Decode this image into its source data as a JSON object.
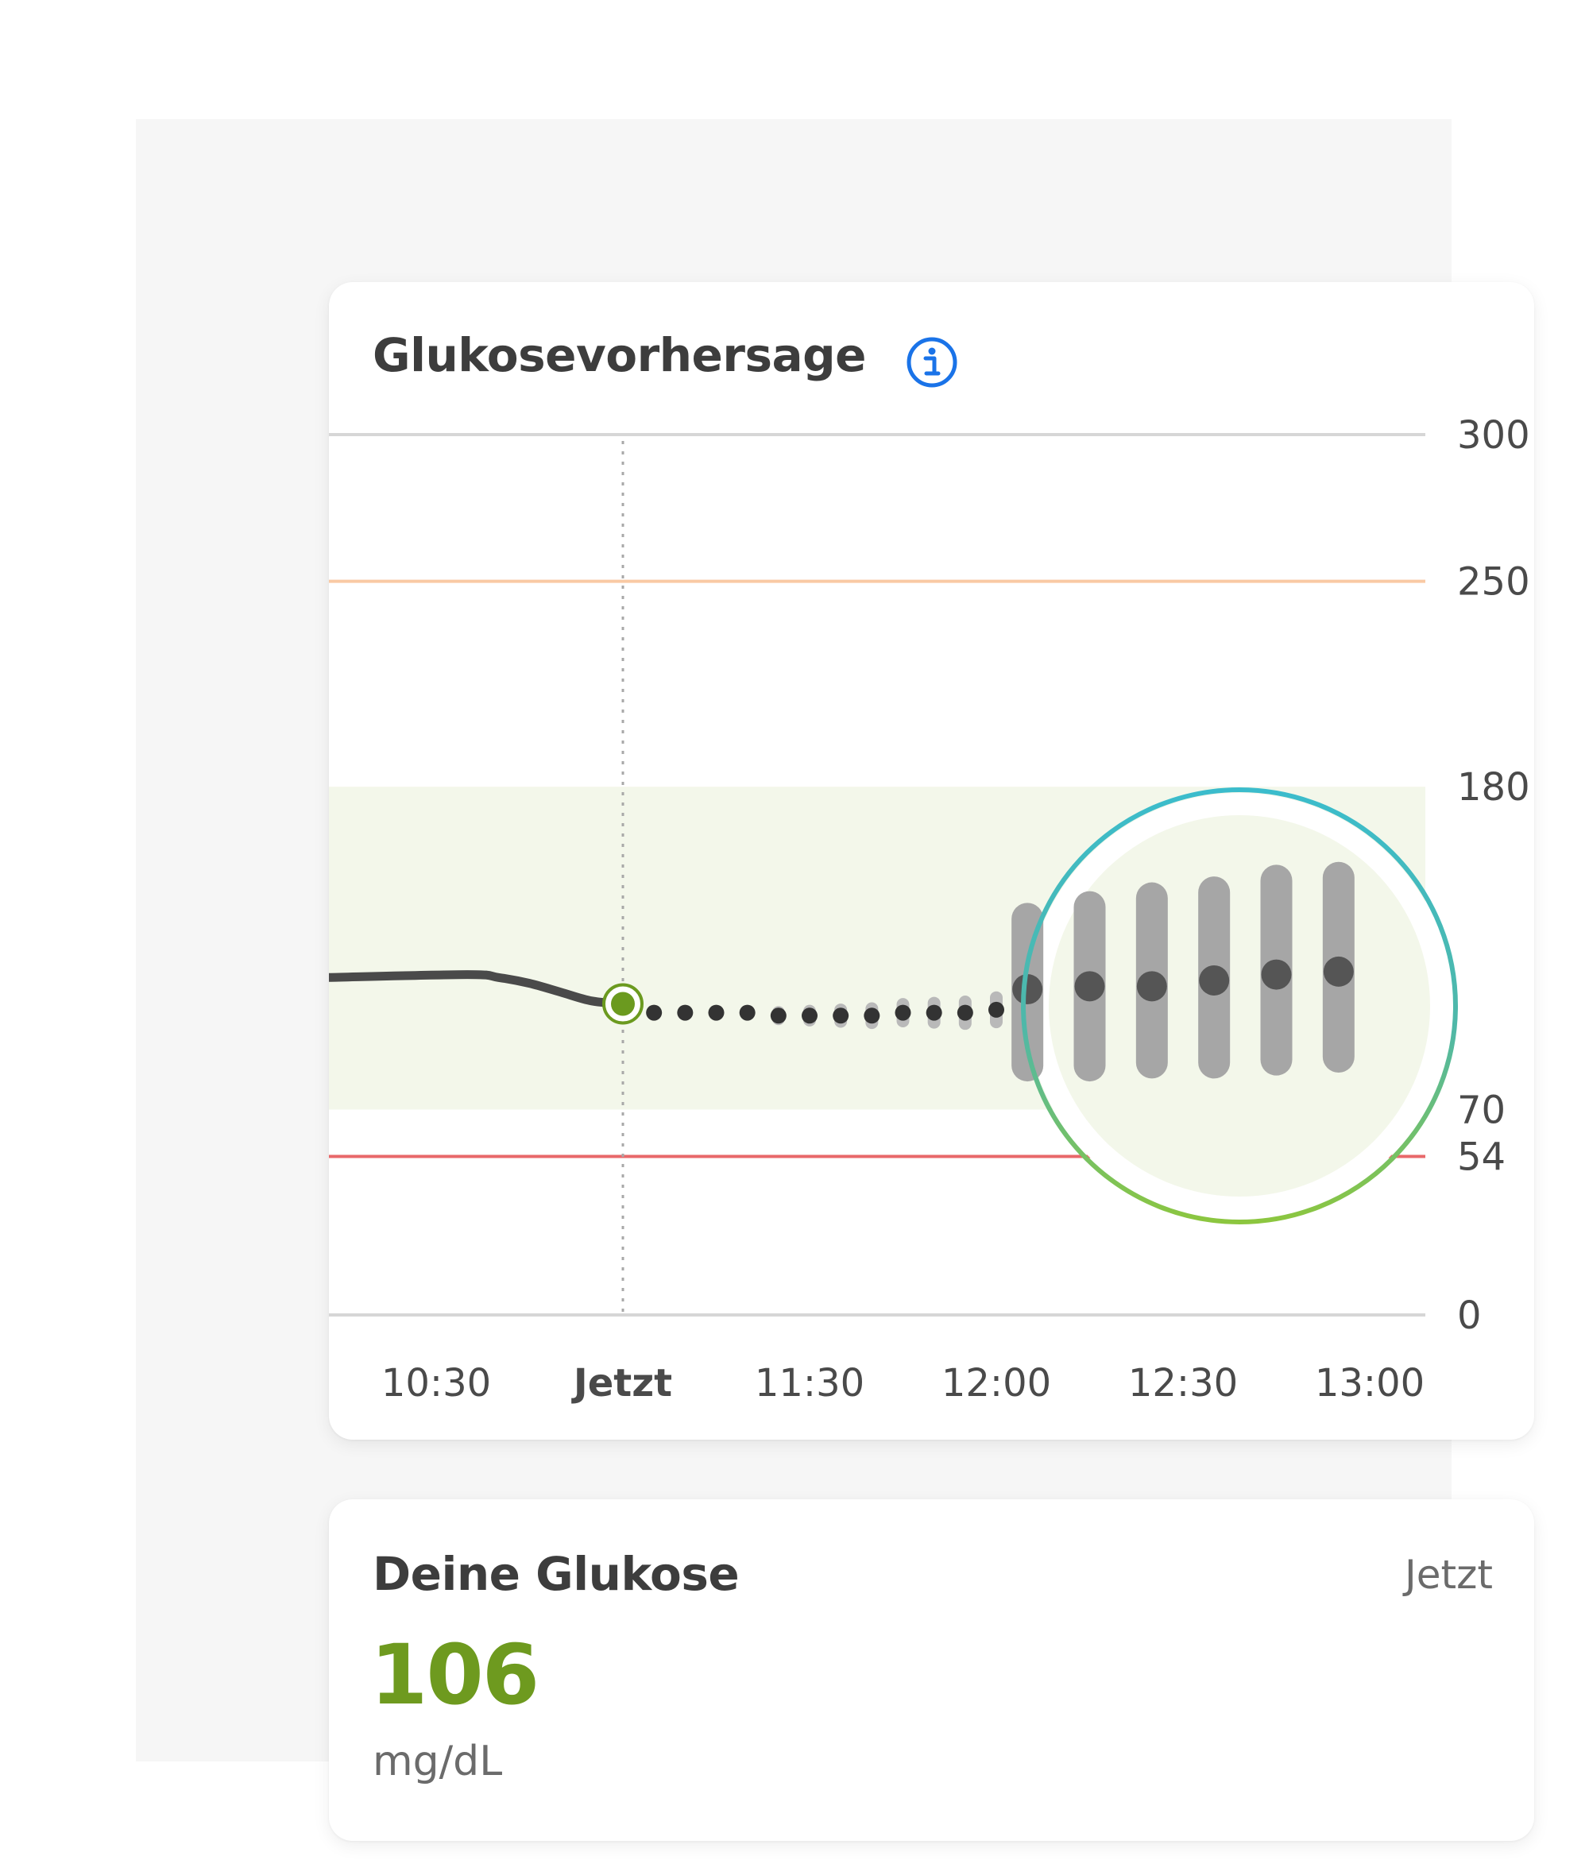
{
  "forecast_card": {
    "title": "Glukosevorhersage",
    "info_icon": "info-circle-icon"
  },
  "glucose_card": {
    "title": "Deine Glukose",
    "time": "Jetzt",
    "value": "106",
    "unit": "mg/dL"
  },
  "colors": {
    "target_band": "#f3f7ea",
    "high_line": "#f9c9a4",
    "low_line": "#e8686a",
    "history_line": "#4a4a4a",
    "now_marker": "#6b9a1f",
    "forecast_dot": "#333333",
    "range_bar": "#a6a6a6",
    "range_dot": "#555555",
    "value_green": "#6e9a1f",
    "info_blue": "#1a73e8"
  },
  "chart_data": {
    "type": "line",
    "title": "Glukosevorhersage",
    "x_ticks": [
      "10:30",
      "Jetzt",
      "11:30",
      "12:00",
      "12:30",
      "13:00"
    ],
    "x_range": [
      "10:30",
      "13:00"
    ],
    "now": "11:00",
    "y_ticks": [
      0,
      54,
      70,
      180,
      250,
      300
    ],
    "y_range": [
      0,
      300
    ],
    "target_range": [
      70,
      180
    ],
    "high_threshold": 250,
    "low_threshold": 54,
    "history": {
      "x": [
        "10:30",
        "10:35",
        "10:40",
        "10:45",
        "10:50",
        "10:55",
        "11:00"
      ],
      "y": [
        115,
        116,
        115,
        113,
        110,
        107,
        106
      ]
    },
    "forecast": {
      "x": [
        "11:05",
        "11:10",
        "11:15",
        "11:20",
        "11:25",
        "11:30",
        "11:35",
        "11:40",
        "11:45",
        "11:50",
        "11:55",
        "12:00"
      ],
      "y": [
        103,
        103,
        103,
        103,
        102,
        102,
        102,
        102,
        103,
        103,
        103,
        104
      ]
    },
    "forecast_range": {
      "x": [
        "12:05",
        "12:15",
        "12:25",
        "12:35",
        "12:45",
        "12:55"
      ],
      "y": [
        111,
        112,
        112,
        114,
        116,
        117
      ],
      "low": [
        85,
        85,
        86,
        86,
        87,
        88
      ],
      "high": [
        135,
        139,
        142,
        144,
        148,
        149
      ]
    },
    "grid": false
  }
}
